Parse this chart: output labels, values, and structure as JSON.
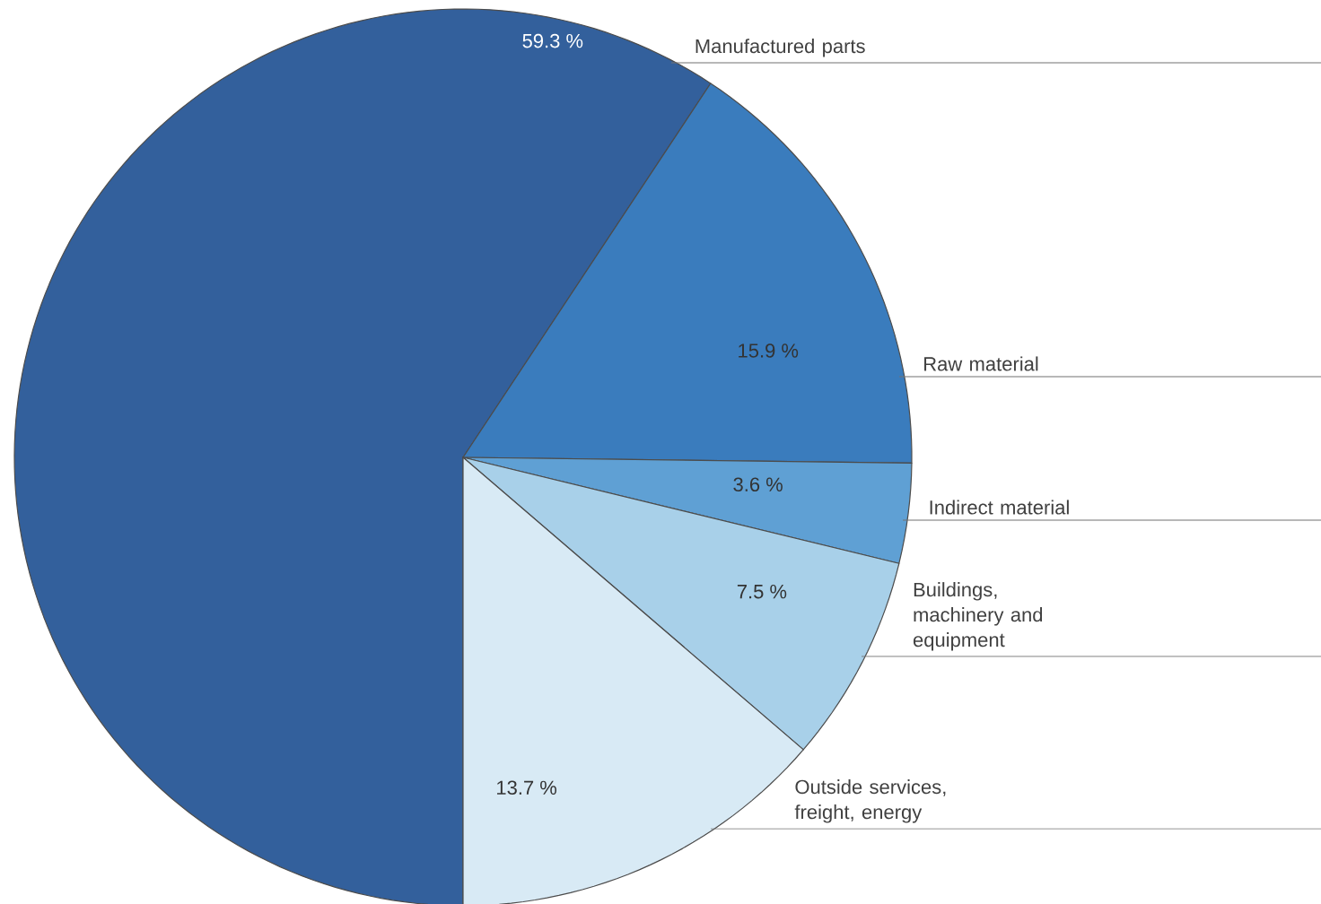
{
  "chart_data": {
    "type": "pie",
    "categories": [
      "Manufactured parts",
      "Raw material",
      "Indirect material",
      "Buildings, machinery and equipment",
      "Outside services, freight, energy"
    ],
    "values": [
      59.3,
      15.9,
      3.6,
      7.5,
      13.7
    ],
    "colors": [
      "#33609c",
      "#3a7cbd",
      "#5fa0d4",
      "#a8d0e9",
      "#d8eaf5"
    ],
    "value_labels": [
      "59.3 %",
      "15.9 %",
      "3.6 %",
      "7.5 %",
      "13.7 %"
    ]
  }
}
